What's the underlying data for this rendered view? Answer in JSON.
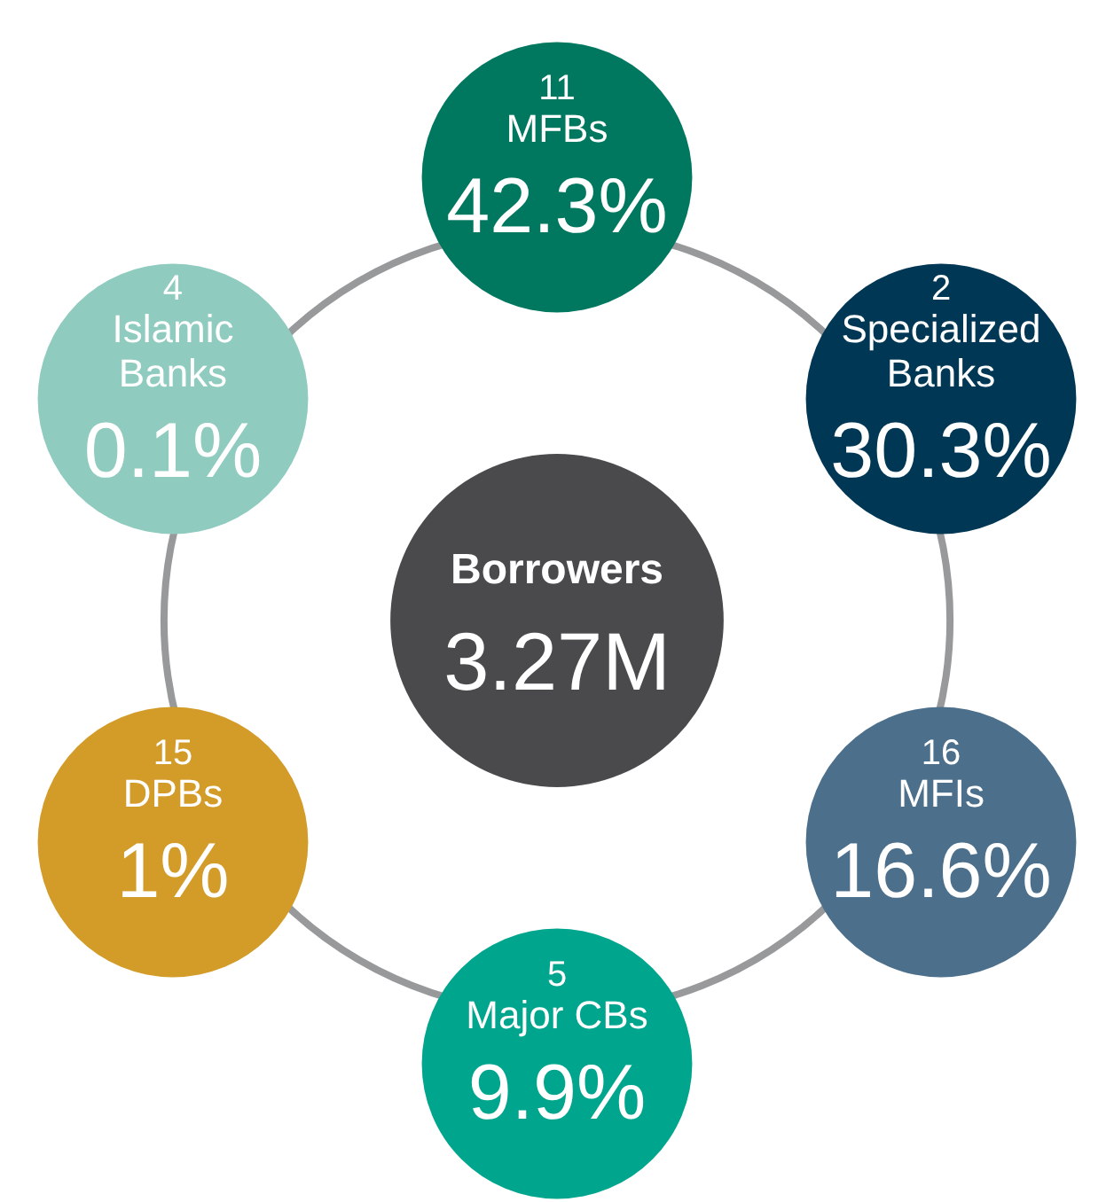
{
  "chart_data": {
    "type": "other",
    "title": "Borrowers",
    "subtitle": "3.27M",
    "categories": [
      "MFBs",
      "Specialized\nBanks",
      "MFIs",
      "Major CBs",
      "DPBs",
      "Islamic\nBanks"
    ],
    "series": [
      {
        "values": [
          11,
          2,
          16,
          5,
          15,
          4
        ],
        "colors": [
          "#00775f",
          "#003755",
          "#4c6f8c",
          "#00a58e",
          "#d39b27",
          "#8fcbbf"
        ],
        "data_labels": true
      },
      {
        "values": [
          42.3,
          30.3,
          16.6,
          9.9,
          1,
          0.1
        ],
        "value_labels": [
          "42.3%",
          "30.3%",
          "16.6%",
          "9.9%",
          "1%",
          "0.1%"
        ]
      }
    ]
  }
}
